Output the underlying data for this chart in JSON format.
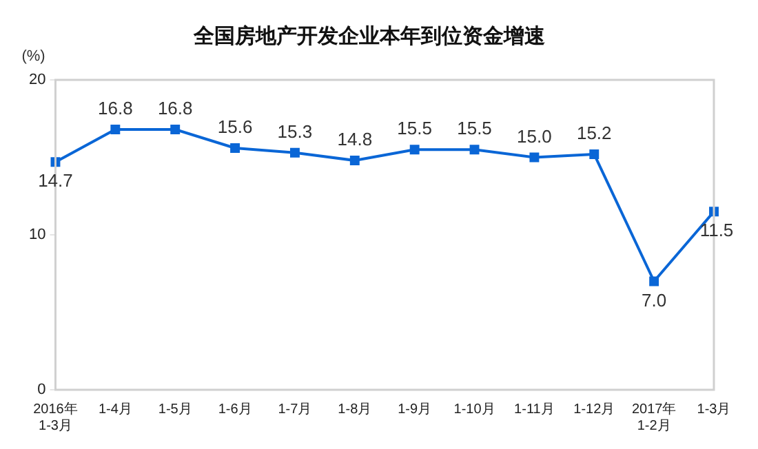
{
  "chart_data": {
    "type": "line",
    "title": "全国房地产开发企业本年到位资金增速",
    "ylabel": "(%)",
    "categories": [
      "2016年\n1-3月",
      "1-4月",
      "1-5月",
      "1-6月",
      "1-7月",
      "1-8月",
      "1-9月",
      "1-10月",
      "1-11月",
      "1-12月",
      "2017年\n1-2月",
      "1-3月"
    ],
    "series": [
      {
        "color": "#0a66d6",
        "values": [
          14.7,
          16.8,
          16.8,
          15.6,
          15.3,
          14.8,
          15.5,
          15.5,
          15.0,
          15.2,
          7.0,
          11.5
        ],
        "value_labels": [
          "14.7",
          "16.8",
          "16.8",
          "15.6",
          "15.3",
          "14.8",
          "15.5",
          "15.5",
          "15.0",
          "15.2",
          "7.0",
          "11.5"
        ]
      }
    ],
    "ylim": [
      0,
      20
    ],
    "yticks": [
      0,
      10,
      20
    ],
    "grid": false,
    "legend": false,
    "marker": "square",
    "line_style": "solid"
  }
}
